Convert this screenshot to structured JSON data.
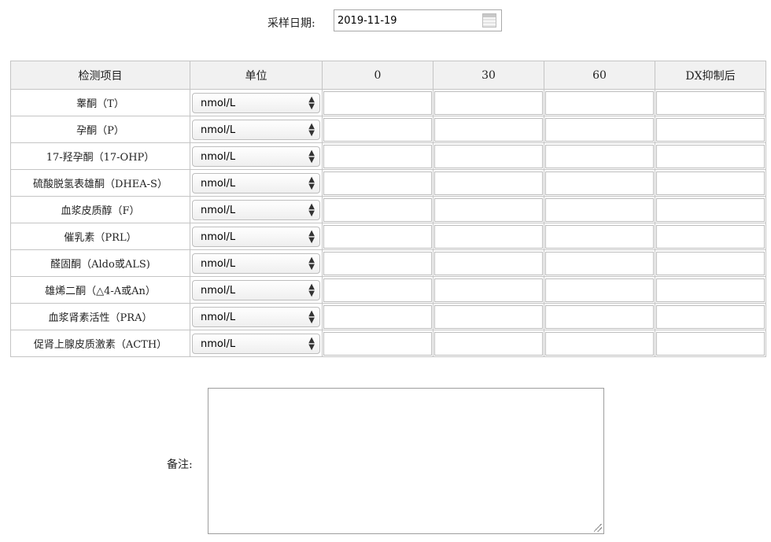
{
  "date": {
    "label": "采样日期:",
    "value": "2019-11-19",
    "icon": "calendar-icon"
  },
  "table": {
    "headers": [
      "检测项目",
      "单位",
      "0",
      "30",
      "60",
      "DX抑制后"
    ],
    "rows": [
      {
        "name": "睾酮（T）",
        "unit": "nmol/L"
      },
      {
        "name": "孕酮（P）",
        "unit": "nmol/L"
      },
      {
        "name": "17-羟孕酮（17-OHP）",
        "unit": "nmol/L"
      },
      {
        "name": "硫酸脱氢表雄酮（DHEA-S）",
        "unit": "nmol/L"
      },
      {
        "name": "血浆皮质醇（F）",
        "unit": "nmol/L"
      },
      {
        "name": "催乳素（PRL）",
        "unit": "nmol/L"
      },
      {
        "name": "醛固酮（Aldo或ALS)",
        "unit": "nmol/L"
      },
      {
        "name": "雄烯二酮（△4-A或An）",
        "unit": "nmol/L"
      },
      {
        "name": "血浆肾素活性（PRA）",
        "unit": "nmol/L"
      },
      {
        "name": "促肾上腺皮质激素（ACTH）",
        "unit": "nmol/L"
      }
    ]
  },
  "notes": {
    "label": "备注:",
    "value": ""
  }
}
